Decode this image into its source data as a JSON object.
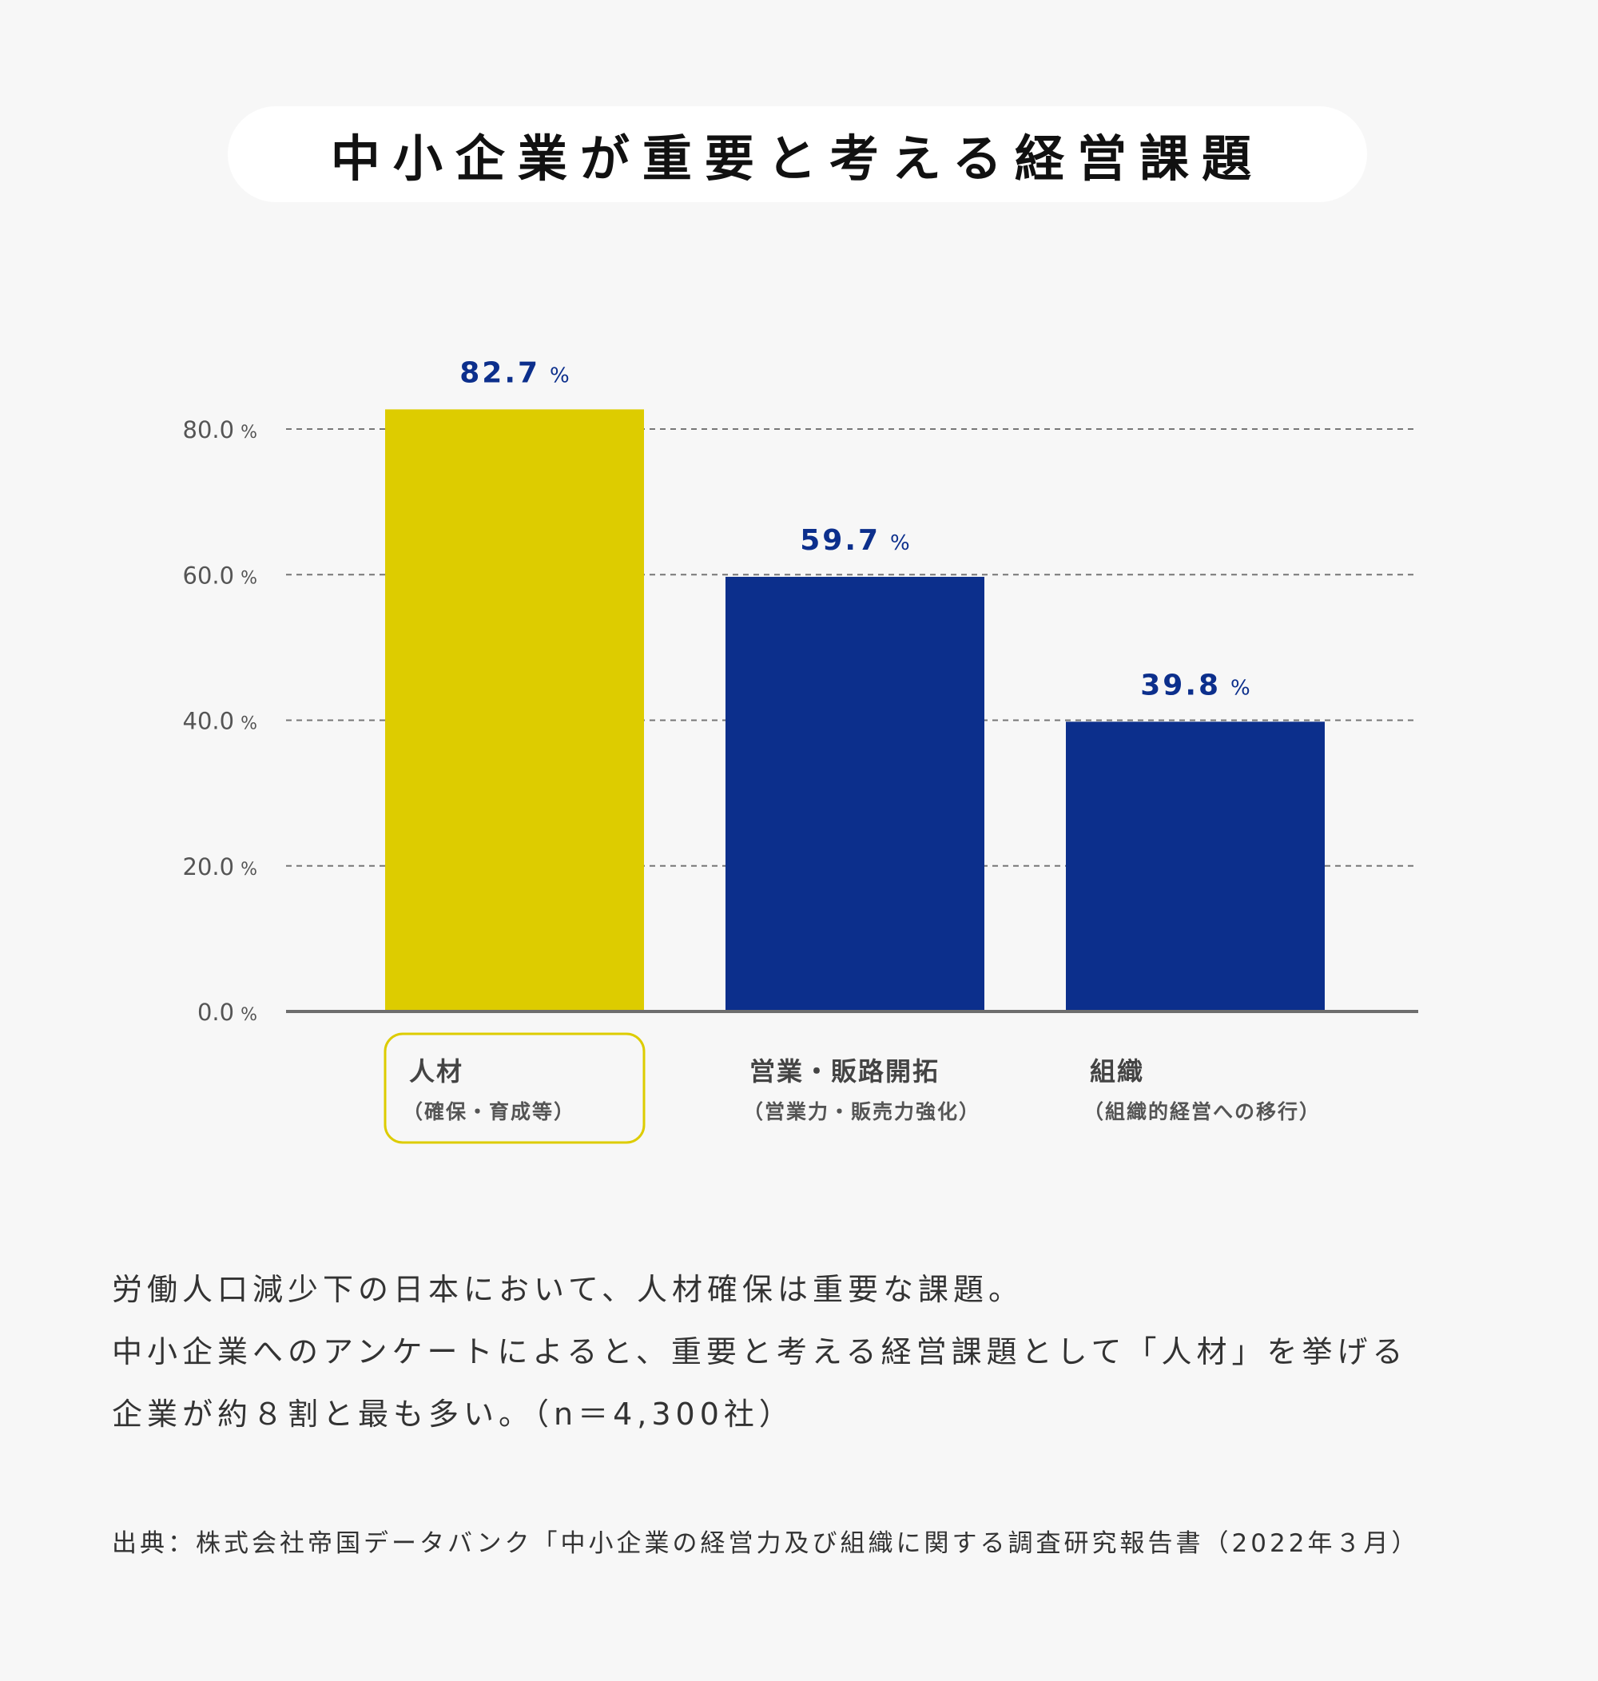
{
  "title": "中小企業が重要と考える経営課題",
  "chart_data": {
    "type": "bar",
    "categories": [
      "人材",
      "営業・販路開拓",
      "組織"
    ],
    "category_sublabels": [
      "（確保・育成等）",
      "（営業力・販売力強化）",
      "（組織的経営への移行）"
    ],
    "values": [
      82.7,
      59.7,
      39.8
    ],
    "value_labels": [
      "82.7",
      "59.7",
      "39.8"
    ],
    "unit": "%",
    "yticks": [
      "0.0",
      "20.0",
      "40.0",
      "60.0",
      "80.0"
    ],
    "ytick_values": [
      0,
      20,
      40,
      60,
      80
    ],
    "ylim": [
      0,
      80
    ],
    "grid": true,
    "bar_colors": [
      "#ddcc00",
      "#0c2f8c",
      "#0c2f8c"
    ],
    "highlight_color": "#ddcc00",
    "label_color": "#0c2f8c",
    "highlighted_category": "人材"
  },
  "description": [
    "労働人口減少下の日本において、人材確保は重要な課題。",
    "中小企業へのアンケートによると、重要と考える経営課題として「人材」を挙げる",
    "企業が約８割と最も多い。（n＝4,300社）"
  ],
  "source": "出典：株式会社帝国データバンク「中小企業の経営力及び組織に関する調査研究報告書（2022年３月）"
}
